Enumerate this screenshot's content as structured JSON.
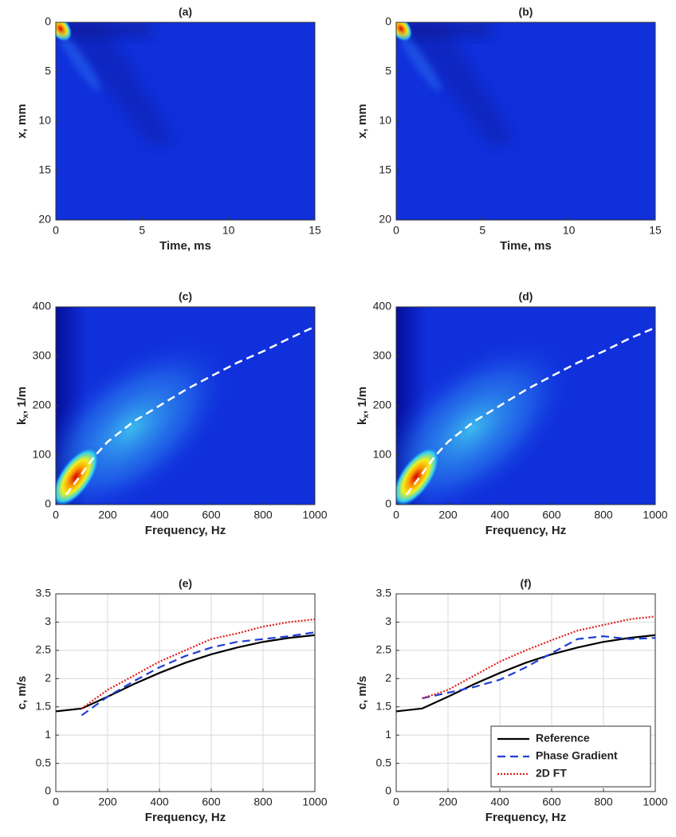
{
  "chart_data": [
    {
      "type": "heatmap",
      "title": "(a)",
      "xlabel": "Time, ms",
      "ylabel": "x, mm",
      "xlim": [
        0,
        15
      ],
      "xticks": [
        0,
        5,
        10,
        15
      ],
      "ylim": [
        0,
        20
      ],
      "yticks": [
        0,
        5,
        10,
        15,
        20
      ],
      "y_reversed": true,
      "grid": false
    },
    {
      "type": "heatmap",
      "title": "(b)",
      "xlabel": "Time, ms",
      "ylabel": "x, mm",
      "xlim": [
        0,
        15
      ],
      "xticks": [
        0,
        5,
        10,
        15
      ],
      "ylim": [
        0,
        20
      ],
      "yticks": [
        0,
        5,
        10,
        15,
        20
      ],
      "y_reversed": true,
      "grid": false
    },
    {
      "type": "heatmap",
      "title": "(c)",
      "xlabel": "Frequency, Hz",
      "ylabel_base": "k",
      "ylabel_sub": "x",
      "ylabel_rest": ", 1/m",
      "xlim": [
        0,
        1000
      ],
      "xticks": [
        0,
        200,
        400,
        600,
        800,
        1000
      ],
      "ylim": [
        0,
        400
      ],
      "yticks": [
        0,
        100,
        200,
        300,
        400
      ],
      "grid": false,
      "x": [
        40,
        100,
        150,
        200,
        300,
        400,
        500,
        600,
        700,
        800,
        900,
        1000
      ],
      "series": [
        {
          "color": "#ffffff",
          "style": "dashed",
          "values": [
            20,
            62,
            98,
            127,
            168,
            200,
            232,
            260,
            287,
            310,
            336,
            360
          ]
        }
      ]
    },
    {
      "type": "heatmap",
      "title": "(d)",
      "xlabel": "Frequency, Hz",
      "ylabel_base": "k",
      "ylabel_sub": "x",
      "ylabel_rest": ", 1/m",
      "xlim": [
        0,
        1000
      ],
      "xticks": [
        0,
        200,
        400,
        600,
        800,
        1000
      ],
      "ylim": [
        0,
        400
      ],
      "yticks": [
        0,
        100,
        200,
        300,
        400
      ],
      "grid": false,
      "x": [
        40,
        100,
        150,
        200,
        300,
        400,
        500,
        600,
        700,
        800,
        900,
        1000
      ],
      "series": [
        {
          "color": "#ffffff",
          "style": "dashed",
          "values": [
            20,
            62,
            98,
            127,
            168,
            200,
            232,
            260,
            287,
            310,
            336,
            358
          ]
        }
      ]
    },
    {
      "type": "line",
      "title": "(e)",
      "xlabel": "Frequency, Hz",
      "ylabel": "c, m/s",
      "xlim": [
        0,
        1000
      ],
      "xticks": [
        0,
        200,
        400,
        600,
        800,
        1000
      ],
      "ylim": [
        0,
        3.5
      ],
      "yticks": [
        0,
        0.5,
        1,
        1.5,
        2,
        2.5,
        3,
        3.5
      ],
      "grid": true,
      "x": [
        0,
        100,
        200,
        300,
        400,
        500,
        600,
        700,
        800,
        900,
        1000
      ],
      "series": [
        {
          "name": "Reference",
          "color": "#000000",
          "style": "solid",
          "values": [
            1.42,
            1.47,
            1.68,
            1.9,
            2.1,
            2.28,
            2.43,
            2.55,
            2.65,
            2.72,
            2.77
          ]
        },
        {
          "name": "Phase Gradient",
          "color": "#1f3fd6",
          "style": "dashed",
          "values": [
            null,
            1.35,
            1.68,
            1.95,
            2.2,
            2.4,
            2.55,
            2.65,
            2.7,
            2.75,
            2.82
          ]
        },
        {
          "name": "2D FT",
          "color": "#e0201a",
          "style": "dotted",
          "values": [
            null,
            1.47,
            1.8,
            2.05,
            2.3,
            2.5,
            2.7,
            2.8,
            2.92,
            3.0,
            3.05
          ]
        }
      ]
    },
    {
      "type": "line",
      "title": "(f)",
      "xlabel": "Frequency, Hz",
      "ylabel": "c, m/s",
      "xlim": [
        0,
        1000
      ],
      "xticks": [
        0,
        200,
        400,
        600,
        800,
        1000
      ],
      "ylim": [
        0,
        3.5
      ],
      "yticks": [
        0,
        0.5,
        1,
        1.5,
        2,
        2.5,
        3,
        3.5
      ],
      "grid": true,
      "legend": "lower right",
      "x": [
        0,
        100,
        200,
        300,
        400,
        500,
        600,
        700,
        800,
        900,
        1000
      ],
      "series": [
        {
          "name": "Reference",
          "color": "#000000",
          "style": "solid",
          "values": [
            1.42,
            1.47,
            1.68,
            1.9,
            2.1,
            2.28,
            2.43,
            2.55,
            2.65,
            2.72,
            2.77
          ]
        },
        {
          "name": "Phase Gradient",
          "color": "#1f3fd6",
          "style": "dashed",
          "values": [
            null,
            1.65,
            1.75,
            1.85,
            1.98,
            2.2,
            2.45,
            2.7,
            2.75,
            2.7,
            2.72
          ]
        },
        {
          "name": "2D FT",
          "color": "#e0201a",
          "style": "dotted",
          "values": [
            null,
            1.65,
            1.8,
            2.05,
            2.3,
            2.5,
            2.68,
            2.85,
            2.95,
            3.05,
            3.1
          ]
        }
      ]
    }
  ]
}
